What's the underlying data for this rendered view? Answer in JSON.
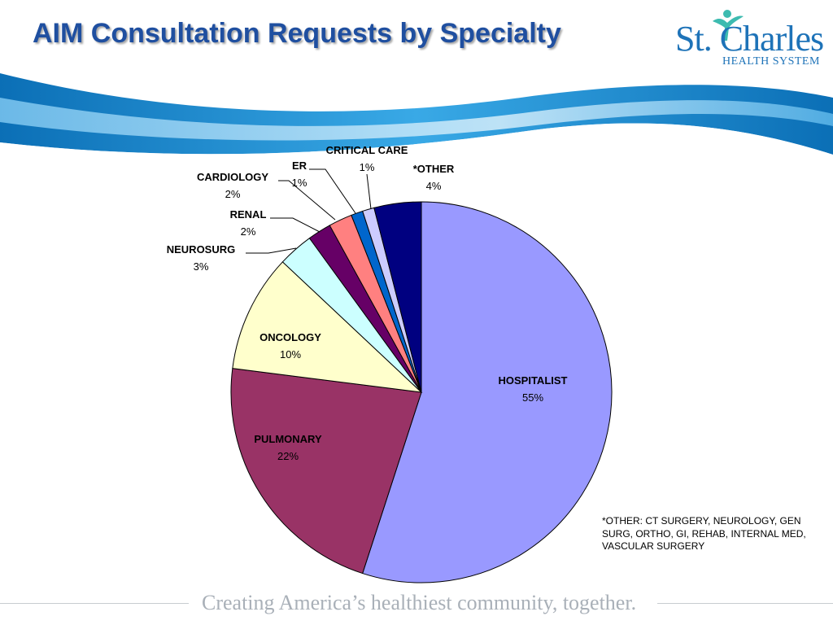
{
  "slide": {
    "title": "AIM Consultation Requests by Specialty",
    "logo": {
      "main": "St. Charles",
      "sub": "HEALTH SYSTEM"
    },
    "footnote": "*OTHER: CT SURGERY, NEUROLOGY, GEN SURG, ORTHO, GI, REHAB, INTERNAL MED, VASCULAR SURGERY",
    "tagline": "Creating America’s healthiest community, together."
  },
  "colors": {
    "title": "#1f4fa0",
    "brand": "#1e73b8",
    "swoosh_dark": "#0b6fb6",
    "swoosh_light": "#39a9e6"
  },
  "chart_data": {
    "type": "pie",
    "title": "",
    "start_angle_deg": 0,
    "direction": "clockwise",
    "slices": [
      {
        "name": "HOSPITALIST",
        "label": "55%",
        "value": 55,
        "color": "#9999ff"
      },
      {
        "name": "PULMONARY",
        "label": "22%",
        "value": 22,
        "color": "#993366"
      },
      {
        "name": "ONCOLOGY",
        "label": "10%",
        "value": 10,
        "color": "#ffffcc"
      },
      {
        "name": "NEUROSURG",
        "label": "3%",
        "value": 3,
        "color": "#ccffff"
      },
      {
        "name": "RENAL",
        "label": "2%",
        "value": 2,
        "color": "#660066"
      },
      {
        "name": "CARDIOLOGY",
        "label": "2%",
        "value": 2,
        "color": "#ff8080"
      },
      {
        "name": "ER",
        "label": "1%",
        "value": 1,
        "color": "#0066cc"
      },
      {
        "name": "CRITICAL CARE",
        "label": "1%",
        "value": 1,
        "color": "#ccccff"
      },
      {
        "name": "*OTHER",
        "label": "4%",
        "value": 4,
        "color": "#000080"
      }
    ],
    "legend": "none",
    "data_labels": "category-and-percent"
  }
}
